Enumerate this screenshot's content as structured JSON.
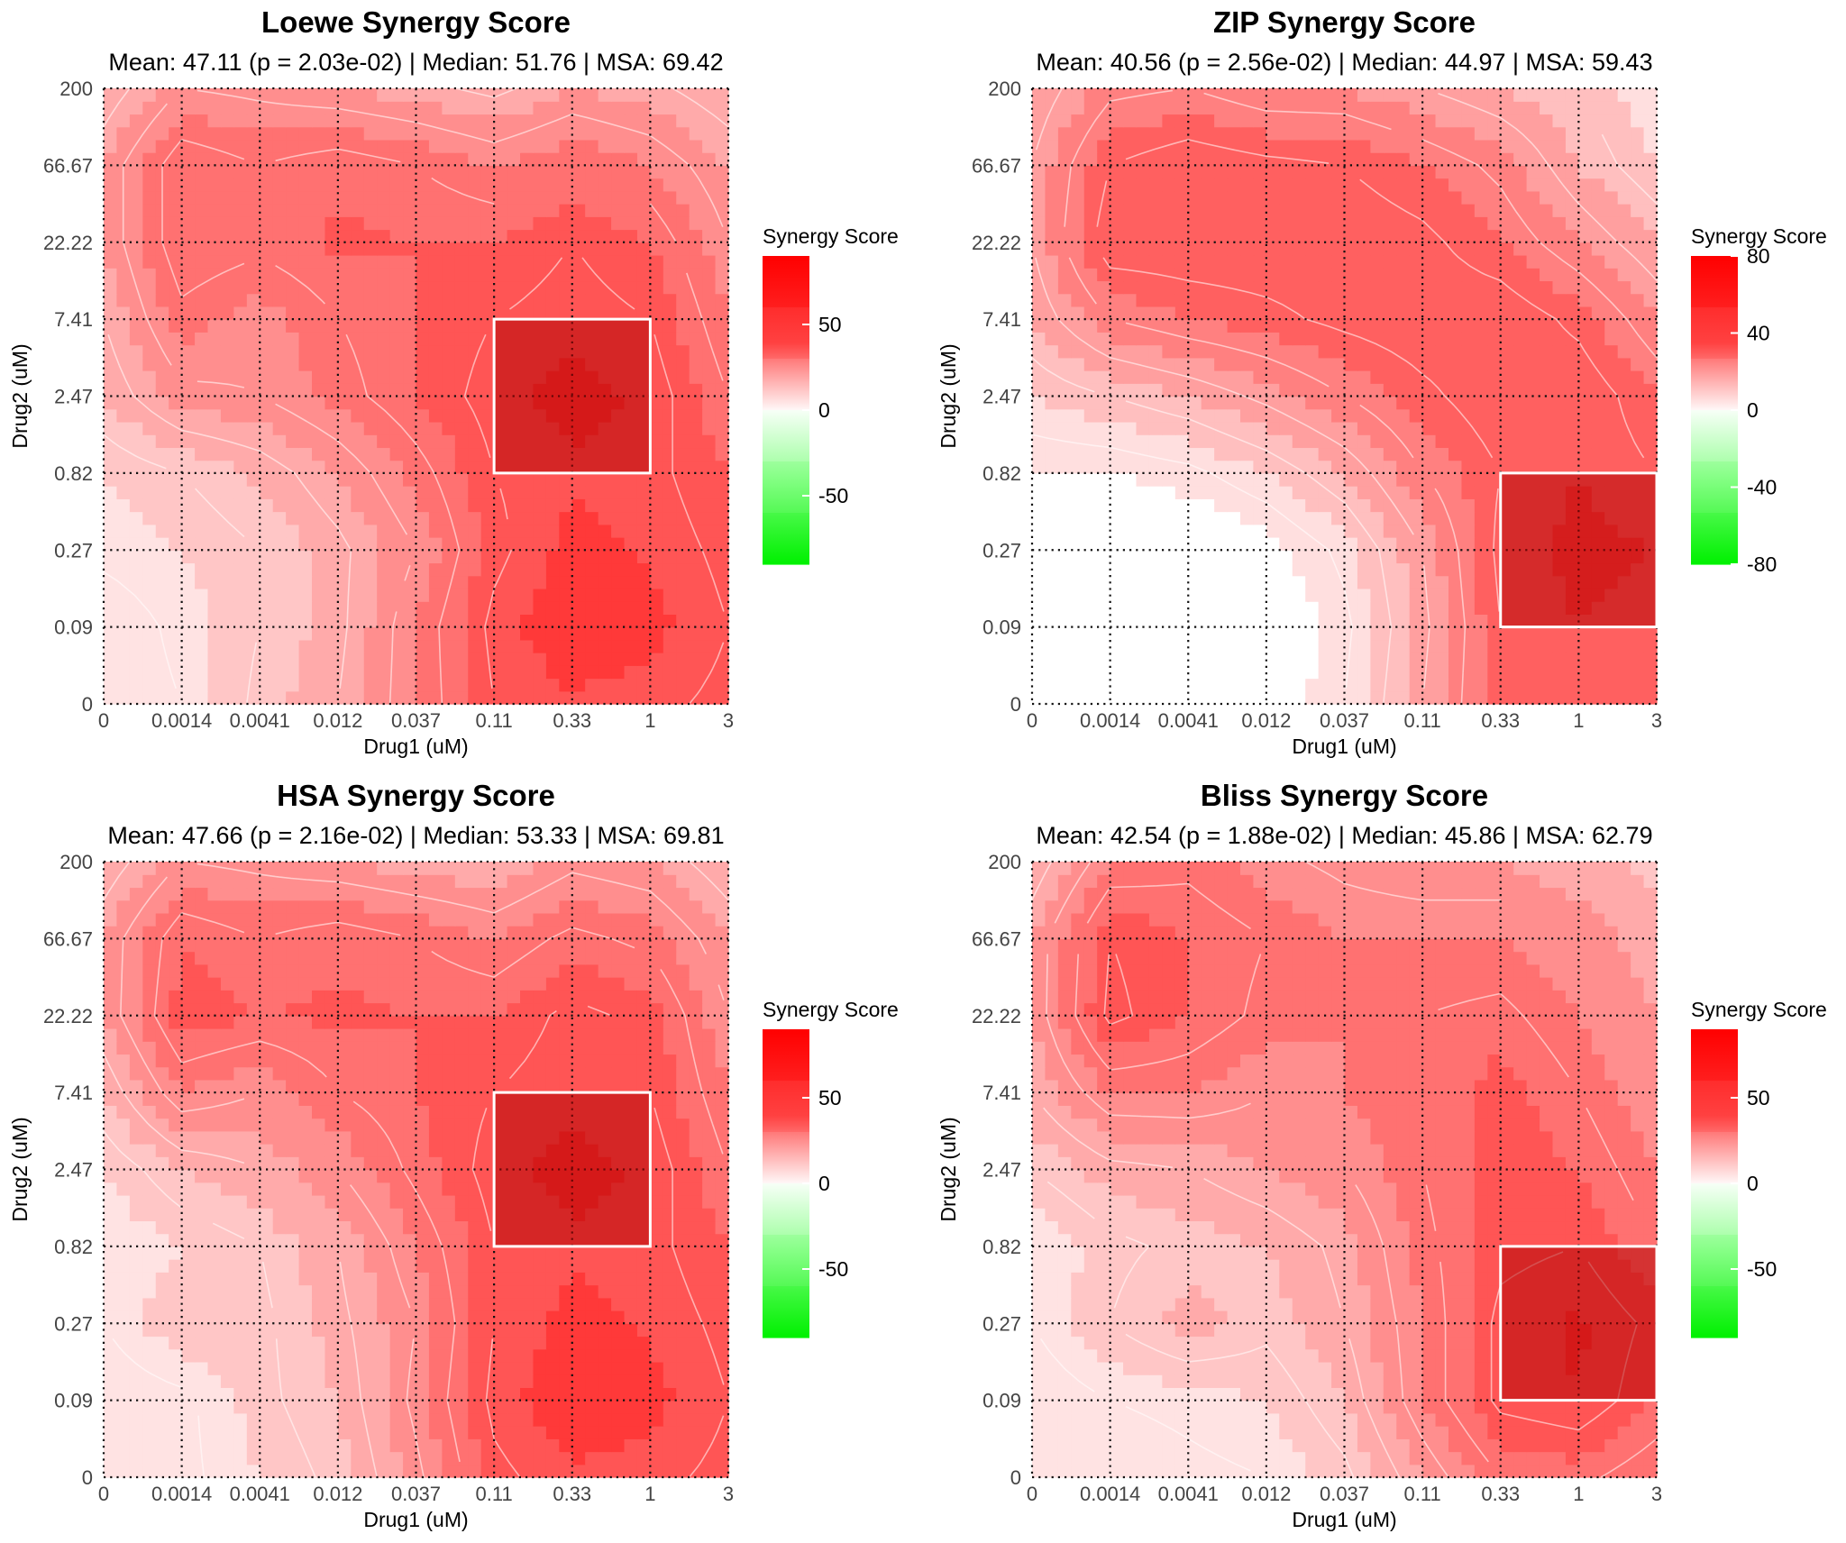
{
  "chart_data": [
    {
      "type": "heatmap",
      "title": "Loewe Synergy Score",
      "stats": {
        "mean": "47.11",
        "p": "2.03e-02",
        "median": "51.76",
        "msa": "69.42"
      },
      "subtitle": "Mean: 47.11 (p = 2.03e-02) | Median: 51.76  | MSA:  69.42",
      "xlabel": "Drug1 (uM)",
      "ylabel": "Drug2 (uM)",
      "x_ticks": [
        "0",
        "0.0014",
        "0.0041",
        "0.012",
        "0.037",
        "0.11",
        "0.33",
        "1",
        "3"
      ],
      "y_ticks": [
        "0",
        "0.09",
        "0.27",
        "0.82",
        "2.47",
        "7.41",
        "22.22",
        "66.67",
        "200"
      ],
      "legend": {
        "title": "Synergy Score",
        "ticks": [
          50,
          0,
          -50
        ],
        "range": [
          -90,
          90
        ]
      },
      "msa_region": {
        "x_from": "0.11",
        "x_to": "1",
        "y_from": "0.82",
        "y_to": "7.41"
      },
      "z": [
        [
          5,
          10,
          22,
          30,
          45,
          60,
          64,
          62,
          58
        ],
        [
          5,
          12,
          20,
          28,
          45,
          62,
          70,
          67,
          60
        ],
        [
          12,
          15,
          20,
          28,
          40,
          58,
          67,
          64,
          58
        ],
        [
          15,
          20,
          26,
          35,
          47,
          60,
          64,
          62,
          55
        ],
        [
          25,
          38,
          40,
          47,
          55,
          63,
          67,
          64,
          50
        ],
        [
          30,
          48,
          42,
          50,
          55,
          60,
          63,
          60,
          45
        ],
        [
          35,
          55,
          52,
          56,
          55,
          55,
          60,
          55,
          40
        ],
        [
          35,
          55,
          50,
          54,
          50,
          45,
          50,
          45,
          35
        ],
        [
          25,
          40,
          38,
          35,
          32,
          28,
          35,
          32,
          25
        ]
      ]
    },
    {
      "type": "heatmap",
      "title": "ZIP Synergy Score",
      "stats": {
        "mean": "40.56",
        "p": "2.56e-02",
        "median": "44.97",
        "msa": "59.43"
      },
      "subtitle": "Mean: 40.56 (p = 2.56e-02) | Median: 44.97  | MSA:  59.43",
      "xlabel": "Drug1 (uM)",
      "ylabel": "Drug2 (uM)",
      "x_ticks": [
        "0",
        "0.0014",
        "0.0041",
        "0.012",
        "0.037",
        "0.11",
        "0.33",
        "1",
        "3"
      ],
      "y_ticks": [
        "0",
        "0.09",
        "0.27",
        "0.82",
        "2.47",
        "7.41",
        "22.22",
        "66.67",
        "200"
      ],
      "legend": {
        "title": "Synergy Score",
        "ticks": [
          80,
          40,
          0,
          -40,
          -80
        ],
        "range": [
          -80,
          80
        ]
      },
      "msa_region": {
        "x_from": "0.33",
        "x_to": "3",
        "y_from": "0.09",
        "y_to": "0.82"
      },
      "z": [
        [
          0,
          -3,
          -3,
          0,
          10,
          30,
          50,
          55,
          50
        ],
        [
          -3,
          -5,
          -5,
          -3,
          8,
          28,
          50,
          55,
          52
        ],
        [
          -2,
          -4,
          -3,
          2,
          12,
          30,
          52,
          57,
          55
        ],
        [
          5,
          5,
          8,
          15,
          25,
          40,
          50,
          55,
          50
        ],
        [
          15,
          20,
          25,
          32,
          40,
          48,
          55,
          55,
          45
        ],
        [
          25,
          40,
          45,
          48,
          52,
          55,
          55,
          48,
          35
        ],
        [
          30,
          55,
          55,
          55,
          55,
          52,
          45,
          35,
          25
        ],
        [
          30,
          50,
          55,
          52,
          50,
          45,
          38,
          25,
          15
        ],
        [
          25,
          38,
          40,
          35,
          35,
          30,
          25,
          20,
          10
        ]
      ]
    },
    {
      "type": "heatmap",
      "title": "HSA Synergy Score",
      "stats": {
        "mean": "47.66",
        "p": "2.16e-02",
        "median": "53.33",
        "msa": "69.81"
      },
      "subtitle": "Mean: 47.66 (p = 2.16e-02) | Median: 53.33  | MSA:  69.81",
      "xlabel": "Drug1 (uM)",
      "ylabel": "Drug2 (uM)",
      "x_ticks": [
        "0",
        "0.0014",
        "0.0041",
        "0.012",
        "0.037",
        "0.11",
        "0.33",
        "1",
        "3"
      ],
      "y_ticks": [
        "0",
        "0.09",
        "0.27",
        "0.82",
        "2.47",
        "7.41",
        "22.22",
        "66.67",
        "200"
      ],
      "legend": {
        "title": "Synergy Score",
        "ticks": [
          50,
          0,
          -50
        ],
        "range": [
          -90,
          90
        ]
      },
      "msa_region": {
        "x_from": "0.11",
        "x_to": "1",
        "y_from": "0.82",
        "y_to": "7.41"
      },
      "z": [
        [
          5,
          8,
          15,
          22,
          38,
          58,
          64,
          62,
          58
        ],
        [
          5,
          8,
          18,
          25,
          42,
          62,
          70,
          67,
          60
        ],
        [
          10,
          20,
          18,
          28,
          40,
          60,
          67,
          64,
          58
        ],
        [
          10,
          15,
          20,
          30,
          45,
          60,
          64,
          62,
          55
        ],
        [
          15,
          25,
          30,
          40,
          52,
          63,
          67,
          64,
          50
        ],
        [
          25,
          45,
          40,
          50,
          55,
          60,
          64,
          60,
          45
        ],
        [
          35,
          58,
          55,
          56,
          55,
          55,
          62,
          58,
          40
        ],
        [
          35,
          55,
          50,
          54,
          50,
          45,
          52,
          48,
          35
        ],
        [
          25,
          40,
          38,
          35,
          32,
          30,
          38,
          35,
          25
        ]
      ]
    },
    {
      "type": "heatmap",
      "title": "Bliss Synergy Score",
      "stats": {
        "mean": "42.54",
        "p": "1.88e-02",
        "median": "45.86",
        "msa": "62.79"
      },
      "subtitle": "Mean: 42.54 (p = 1.88e-02) | Median: 45.86  | MSA:  62.79",
      "xlabel": "Drug1 (uM)",
      "ylabel": "Drug2 (uM)",
      "x_ticks": [
        "0",
        "0.0014",
        "0.0041",
        "0.012",
        "0.037",
        "0.11",
        "0.33",
        "1",
        "3"
      ],
      "y_ticks": [
        "0",
        "0.09",
        "0.27",
        "0.82",
        "2.47",
        "7.41",
        "22.22",
        "66.67",
        "200"
      ],
      "legend": {
        "title": "Synergy Score",
        "ticks": [
          50,
          0,
          -50
        ],
        "range": [
          -90,
          90
        ]
      },
      "msa_region": {
        "x_from": "0.33",
        "x_to": "3",
        "y_from": "0.09",
        "y_to": "0.82"
      },
      "z": [
        [
          5,
          5,
          8,
          10,
          18,
          35,
          50,
          52,
          45
        ],
        [
          5,
          10,
          12,
          15,
          25,
          45,
          62,
          65,
          55
        ],
        [
          10,
          20,
          28,
          22,
          30,
          45,
          62,
          66,
          58
        ],
        [
          10,
          18,
          22,
          25,
          32,
          48,
          58,
          60,
          50
        ],
        [
          20,
          28,
          30,
          35,
          40,
          50,
          58,
          55,
          45
        ],
        [
          30,
          45,
          45,
          40,
          45,
          50,
          58,
          50,
          40
        ],
        [
          35,
          62,
          55,
          48,
          45,
          50,
          52,
          45,
          35
        ],
        [
          35,
          60,
          55,
          50,
          45,
          45,
          45,
          40,
          30
        ],
        [
          25,
          45,
          48,
          42,
          38,
          35,
          35,
          30,
          20
        ]
      ]
    }
  ]
}
